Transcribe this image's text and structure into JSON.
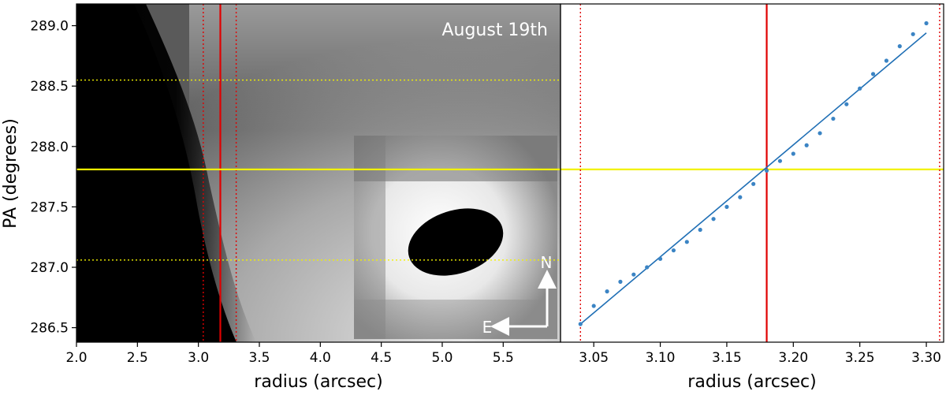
{
  "chart_data": [
    {
      "type": "heatmap",
      "title": "August 19th",
      "xlabel": "radius (arcsec)",
      "ylabel": "PA (degrees)",
      "xlim": [
        2.0,
        5.97
      ],
      "ylim": [
        286.38,
        289.18
      ],
      "x_ticks": [
        2.0,
        2.5,
        3.0,
        3.5,
        4.0,
        4.5,
        5.0,
        5.5
      ],
      "y_ticks": [
        286.5,
        287.0,
        287.5,
        288.0,
        288.5,
        289.0
      ],
      "lines": {
        "radius_center": 3.18,
        "radius_bounds": [
          3.04,
          3.31
        ],
        "pa_center": 287.81,
        "pa_bounds": [
          287.06,
          288.55
        ]
      },
      "inset": {
        "compass_north": "N",
        "compass_east": "E"
      },
      "colors": {
        "radius_line": "#e00000",
        "pa_line": "#f2f200"
      }
    },
    {
      "type": "scatter",
      "xlabel": "radius (arcsec)",
      "ylabel": "",
      "xlim": [
        3.025,
        3.313
      ],
      "ylim": [
        286.38,
        289.18
      ],
      "x_ticks": [
        3.05,
        3.1,
        3.15,
        3.2,
        3.25,
        3.3
      ],
      "series": [
        {
          "x": [
            3.04,
            3.05,
            3.06,
            3.07,
            3.08,
            3.09,
            3.1,
            3.11,
            3.12,
            3.13,
            3.14,
            3.15,
            3.16,
            3.17,
            3.18,
            3.19,
            3.2,
            3.21,
            3.22,
            3.23,
            3.24,
            3.25,
            3.26,
            3.27,
            3.28,
            3.29,
            3.3
          ],
          "y": [
            286.53,
            286.68,
            286.8,
            286.88,
            286.94,
            287.0,
            287.07,
            287.14,
            287.21,
            287.31,
            287.4,
            287.5,
            287.58,
            287.69,
            287.8,
            287.88,
            287.94,
            288.01,
            288.11,
            288.23,
            288.35,
            288.48,
            288.6,
            288.71,
            288.83,
            288.93,
            289.02
          ]
        }
      ],
      "fit": {
        "x": [
          3.04,
          3.3
        ],
        "y": [
          286.53,
          288.94
        ]
      },
      "lines": {
        "radius_center": 3.18,
        "radius_bounds": [
          3.04,
          3.31
        ],
        "pa_center": 287.81
      },
      "colors": {
        "points": "#3b84c4",
        "fit": "#1f6fb5",
        "radius_line": "#e00000",
        "pa_line": "#f2f200"
      }
    }
  ]
}
